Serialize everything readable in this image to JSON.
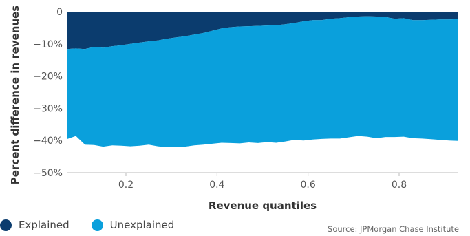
{
  "chart_data": {
    "type": "area",
    "xlabel": "Revenue quantiles",
    "ylabel": "Percent difference in revenues",
    "xlim": [
      0.07,
      0.93
    ],
    "ylim": [
      -50,
      0
    ],
    "x_ticks": [
      0.2,
      0.4,
      0.6,
      0.8
    ],
    "x_tick_labels": [
      "0.2",
      "0.4",
      "0.6",
      "0.8"
    ],
    "y_ticks": [
      0,
      -10,
      -20,
      -30,
      -40,
      -50
    ],
    "y_tick_labels": [
      "0",
      "−10%",
      "−20%",
      "−30%",
      "−40%",
      "−50%"
    ],
    "x": [
      0.07,
      0.09,
      0.11,
      0.13,
      0.15,
      0.17,
      0.19,
      0.21,
      0.23,
      0.25,
      0.27,
      0.29,
      0.31,
      0.33,
      0.35,
      0.37,
      0.39,
      0.41,
      0.43,
      0.45,
      0.47,
      0.49,
      0.51,
      0.53,
      0.55,
      0.57,
      0.59,
      0.61,
      0.63,
      0.65,
      0.67,
      0.69,
      0.71,
      0.73,
      0.75,
      0.77,
      0.79,
      0.81,
      0.83,
      0.85,
      0.87,
      0.89,
      0.91,
      0.93
    ],
    "series": [
      {
        "name": "Explained",
        "color": "#0b3c6e",
        "values": [
          -11.6,
          -11.4,
          -11.6,
          -10.9,
          -11.2,
          -10.7,
          -10.4,
          -10.0,
          -9.6,
          -9.2,
          -8.9,
          -8.4,
          -8.0,
          -7.6,
          -7.1,
          -6.6,
          -5.9,
          -5.2,
          -4.8,
          -4.6,
          -4.5,
          -4.4,
          -4.3,
          -4.2,
          -3.9,
          -3.5,
          -3.0,
          -2.6,
          -2.6,
          -2.2,
          -2.0,
          -1.7,
          -1.5,
          -1.4,
          -1.5,
          -1.6,
          -2.2,
          -2.0,
          -2.6,
          -2.6,
          -2.5,
          -2.4,
          -2.4,
          -2.3
        ]
      },
      {
        "name": "Unexplained",
        "color": "#0aa0dc",
        "values": [
          -39.6,
          -38.6,
          -41.3,
          -41.4,
          -41.9,
          -41.5,
          -41.6,
          -41.8,
          -41.6,
          -41.3,
          -41.8,
          -42.1,
          -42.1,
          -41.9,
          -41.5,
          -41.3,
          -41.0,
          -40.7,
          -40.8,
          -40.9,
          -40.6,
          -40.8,
          -40.5,
          -40.7,
          -40.3,
          -39.8,
          -40.0,
          -39.7,
          -39.5,
          -39.4,
          -39.4,
          -39.0,
          -38.6,
          -38.8,
          -39.3,
          -38.9,
          -38.9,
          -38.8,
          -39.3,
          -39.4,
          -39.6,
          -39.8,
          -40.0,
          -40.1
        ]
      }
    ],
    "legend_position": "bottom-left",
    "grid": false
  },
  "legend": {
    "explained": "Explained",
    "unexplained": "Unexplained",
    "explained_color": "#0b3c6e",
    "unexplained_color": "#0aa0dc"
  },
  "source": "Source: JPMorgan Chase Institute"
}
